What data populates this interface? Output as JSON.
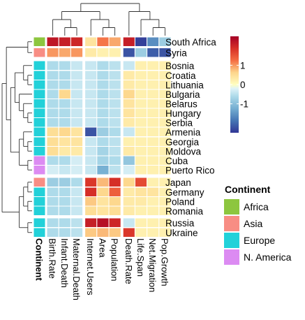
{
  "chart_data": {
    "type": "heatmap",
    "title": "",
    "columns": [
      "Birth.Rate",
      "Infant.Death",
      "Maternal.Death",
      "Internet.Users",
      "Area",
      "Population",
      "Death.Rate",
      "Life.Span",
      "Net.Migration",
      "Pop.Growth"
    ],
    "rows": [
      "South Africa",
      "Syria",
      "Bosnia",
      "Croatia",
      "Lithuania",
      "Bulgaria",
      "Belarus",
      "Hungary",
      "Serbia",
      "Armenia",
      "Georgia",
      "Moldova",
      "Cuba",
      "Puerto Rico",
      "Japan",
      "Germany",
      "Poland",
      "Romania",
      "Russia",
      "Ukraine"
    ],
    "continent": [
      "Africa",
      "Asia",
      "Europe",
      "Europe",
      "Europe",
      "Europe",
      "Europe",
      "Europe",
      "Europe",
      "Europe",
      "Europe",
      "Europe",
      "N. America",
      "N. America",
      "Asia",
      "Europe",
      "Europe",
      "Europe",
      "Europe",
      "Europe"
    ],
    "values": [
      [
        2.2,
        2.1,
        2.0,
        0.4,
        1.2,
        0.9,
        2.1,
        -2.4,
        -1.6,
        -0.8
      ],
      [
        1.0,
        0.9,
        1.0,
        0.3,
        0.2,
        0.2,
        -2.2,
        -0.8,
        -2.1,
        -2.2
      ],
      [
        -0.6,
        -0.6,
        -0.4,
        -0.4,
        -0.6,
        -0.5,
        -0.4,
        0.2,
        0.2,
        0.2
      ],
      [
        -0.6,
        -0.6,
        -0.4,
        -0.4,
        -0.6,
        -0.5,
        0.3,
        0.2,
        0.2,
        0.2
      ],
      [
        -0.6,
        -0.6,
        -0.4,
        -0.4,
        -0.6,
        -0.5,
        0.3,
        0.2,
        0.2,
        0.2
      ],
      [
        -0.6,
        0.6,
        -0.4,
        -0.4,
        -0.6,
        -0.5,
        0.6,
        0.2,
        0.2,
        0.2
      ],
      [
        -0.6,
        -0.6,
        -0.4,
        -0.4,
        -0.6,
        -0.5,
        0.4,
        0.2,
        0.2,
        0.2
      ],
      [
        -0.6,
        -0.6,
        -0.4,
        -0.4,
        -0.6,
        -0.5,
        0.4,
        0.2,
        0.2,
        0.2
      ],
      [
        -0.6,
        -0.6,
        -0.4,
        -0.4,
        -0.6,
        -0.5,
        0.3,
        0.2,
        0.2,
        0.2
      ],
      [
        0.5,
        0.6,
        0.4,
        -2.2,
        -0.8,
        -0.6,
        -0.4,
        0.2,
        0.2,
        0.2
      ],
      [
        0.5,
        0.4,
        0.4,
        -0.4,
        -0.6,
        -0.5,
        0.2,
        0.2,
        0.2,
        0.2
      ],
      [
        0.5,
        0.3,
        0.3,
        -0.4,
        -0.7,
        -0.5,
        0.3,
        0.2,
        0.2,
        0.2
      ],
      [
        -0.6,
        -0.6,
        -0.3,
        -0.4,
        -0.7,
        -0.6,
        -0.9,
        0.2,
        0.2,
        0.2
      ],
      [
        -0.3,
        -0.4,
        -0.3,
        -0.4,
        -1.2,
        -0.5,
        -0.3,
        0.2,
        0.2,
        0.2
      ],
      [
        -0.8,
        -0.8,
        -0.6,
        1.8,
        0.8,
        1.9,
        0.6,
        1.6,
        0.2,
        0.2
      ],
      [
        -0.6,
        -0.6,
        -0.4,
        1.9,
        0.6,
        1.4,
        0.3,
        0.4,
        0.4,
        0.2
      ],
      [
        -0.6,
        -0.6,
        -0.4,
        0.7,
        0.4,
        0.6,
        0.3,
        0.3,
        0.2,
        0.2
      ],
      [
        -0.6,
        -0.6,
        -0.4,
        0.5,
        0.4,
        0.5,
        0.3,
        0.2,
        0.2,
        0.2
      ],
      [
        -0.6,
        -0.6,
        -0.5,
        2.1,
        2.3,
        2.0,
        -0.4,
        0.2,
        0.2,
        0.2
      ],
      [
        -0.6,
        -0.6,
        -0.5,
        0.7,
        0.8,
        0.7,
        1.8,
        0.2,
        0.2,
        0.2
      ]
    ],
    "color_scale": {
      "min": -2.5,
      "max": 2.5,
      "ticks": [
        -1,
        0,
        1
      ],
      "low_color": "#313695",
      "mid_color": "#ffffbf",
      "high_color": "#a50026"
    },
    "annotation": {
      "label": "Continent",
      "legend_title": "Continent",
      "categories": [
        {
          "name": "Africa",
          "color": "#8dc63f"
        },
        {
          "name": "Asia",
          "color": "#f88d84"
        },
        {
          "name": "Europe",
          "color": "#22d1d9"
        },
        {
          "name": "N. America",
          "color": "#dc8bf2"
        }
      ]
    },
    "column_tree": [
      [
        [
          [
            0,
            [
              1,
              2
            ]
          ],
          [
            3,
            [
              4,
              5
            ]
          ]
        ],
        [
          6,
          [
            7,
            [
              8,
              9
            ]
          ]
        ]
      ]
    ],
    "row_tree": [
      [
        [
          [
            0,
            1
          ],
          [
            [
              [
                2,
                [
                  3,
                  4
                ]
              ],
              [
                5,
                [
                  6,
                  [
                    7,
                    8
                  ]
                ]
              ]
            ],
            [
              [
                9,
                [
                  10,
                  11
                ]
              ],
              [
                12,
                13
              ]
            ]
          ]
        ],
        [
          [
            [
              14,
              15
            ],
            [
              16,
              17
            ]
          ],
          [
            18,
            19
          ]
        ]
      ]
    ]
  }
}
